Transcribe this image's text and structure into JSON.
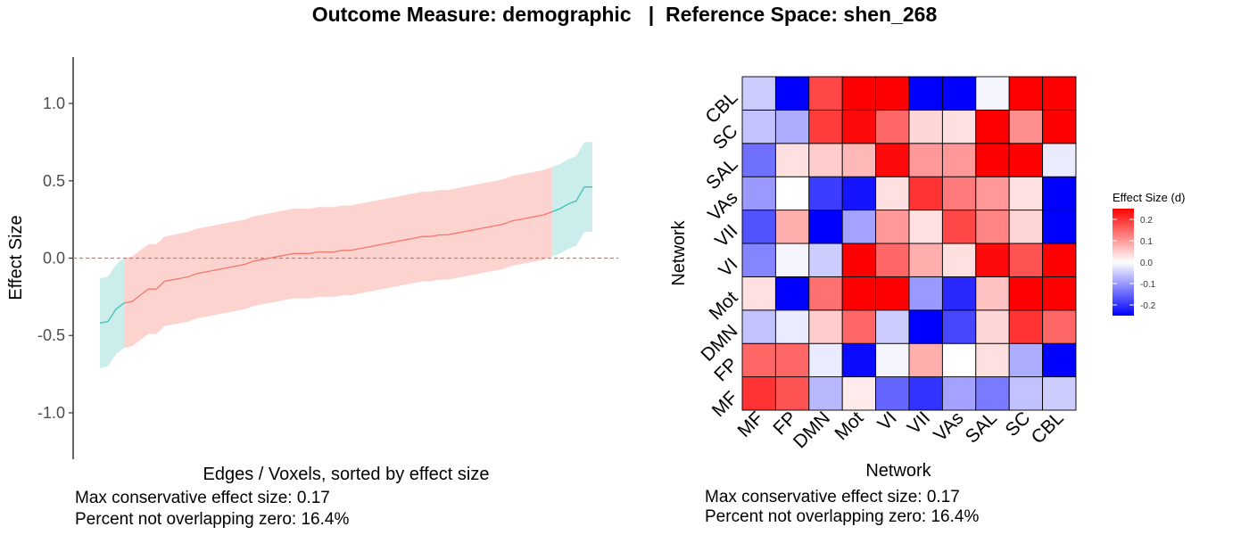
{
  "title": "Outcome Measure: demographic   |  Reference Space: shen_268",
  "colors": {
    "sig_fill": "#cbeeec",
    "sig_line": "#3fbfb5",
    "nonsig_fill": "#fdd3d0",
    "nonsig_line": "#f4786c",
    "zero_line": "#e8705f",
    "low": "#0000ff",
    "mid": "#ffffff",
    "high": "#ff0000"
  },
  "chart_data": [
    {
      "type": "area",
      "xlabel": "Edges / Voxels, sorted by effect size",
      "ylabel": "Effect Size",
      "ylim": [
        -1.3,
        1.3
      ],
      "yticks": [
        "-1.0",
        "-0.5",
        "0.0",
        "0.5",
        "1.0"
      ],
      "ytick_values": [
        -1.0,
        -0.5,
        0.0,
        0.5,
        1.0
      ],
      "reference_line": 0.0,
      "grid": false,
      "series": [
        {
          "values": [
            -0.42,
            -0.41,
            -0.33,
            -0.29,
            -0.28,
            -0.24,
            -0.2,
            -0.2,
            -0.15,
            -0.14,
            -0.13,
            -0.12,
            -0.1,
            -0.09,
            -0.08,
            -0.07,
            -0.06,
            -0.05,
            -0.04,
            -0.02,
            -0.01,
            0.0,
            0.01,
            0.02,
            0.03,
            0.03,
            0.03,
            0.04,
            0.04,
            0.04,
            0.05,
            0.05,
            0.06,
            0.07,
            0.08,
            0.09,
            0.1,
            0.11,
            0.12,
            0.13,
            0.14,
            0.14,
            0.15,
            0.15,
            0.16,
            0.17,
            0.18,
            0.19,
            0.2,
            0.21,
            0.22,
            0.24,
            0.25,
            0.26,
            0.27,
            0.28,
            0.3,
            0.32,
            0.35,
            0.37,
            0.46,
            0.46
          ]
        },
        {
          "lower": [
            -0.71,
            -0.7,
            -0.62,
            -0.58,
            -0.57,
            -0.53,
            -0.49,
            -0.49,
            -0.44,
            -0.43,
            -0.42,
            -0.41,
            -0.39,
            -0.38,
            -0.37,
            -0.36,
            -0.35,
            -0.34,
            -0.33,
            -0.31,
            -0.3,
            -0.29,
            -0.28,
            -0.27,
            -0.26,
            -0.26,
            -0.26,
            -0.25,
            -0.25,
            -0.25,
            -0.24,
            -0.24,
            -0.23,
            -0.22,
            -0.21,
            -0.2,
            -0.19,
            -0.18,
            -0.17,
            -0.16,
            -0.15,
            -0.15,
            -0.14,
            -0.14,
            -0.13,
            -0.12,
            -0.11,
            -0.1,
            -0.09,
            -0.08,
            -0.07,
            -0.05,
            -0.04,
            -0.03,
            -0.02,
            -0.01,
            0.01,
            0.03,
            0.06,
            0.08,
            0.17,
            0.17
          ]
        },
        {
          "upper": [
            -0.13,
            -0.12,
            -0.04,
            0.0,
            0.01,
            0.05,
            0.09,
            0.09,
            0.14,
            0.15,
            0.16,
            0.17,
            0.19,
            0.2,
            0.21,
            0.22,
            0.23,
            0.24,
            0.25,
            0.27,
            0.28,
            0.29,
            0.3,
            0.31,
            0.32,
            0.32,
            0.32,
            0.33,
            0.33,
            0.33,
            0.34,
            0.34,
            0.35,
            0.36,
            0.37,
            0.38,
            0.39,
            0.4,
            0.41,
            0.42,
            0.43,
            0.43,
            0.44,
            0.44,
            0.45,
            0.46,
            0.47,
            0.48,
            0.49,
            0.5,
            0.51,
            0.53,
            0.54,
            0.55,
            0.56,
            0.57,
            0.59,
            0.61,
            0.64,
            0.66,
            0.75,
            0.75
          ]
        }
      ],
      "notes": [
        "Max conservative effect size: 0.17",
        "Percent not overlapping zero: 16.4%"
      ]
    },
    {
      "type": "heatmap",
      "xlabel": "Network",
      "ylabel": "Network",
      "x_categories": [
        "MF",
        "FP",
        "DMN",
        "Mot",
        "VI",
        "VII",
        "VAs",
        "SAL",
        "SC",
        "CBL"
      ],
      "y_categories": [
        "MF",
        "FP",
        "DMN",
        "Mot",
        "VI",
        "VII",
        "VAs",
        "SAL",
        "SC",
        "CBL"
      ],
      "values": [
        [
          0.2,
          0.17,
          -0.07,
          0.02,
          -0.15,
          -0.2,
          -0.09,
          -0.13,
          -0.06,
          -0.05
        ],
        [
          0.15,
          0.15,
          -0.02,
          -0.24,
          -0.01,
          0.08,
          0.0,
          0.03,
          -0.08,
          -0.25
        ],
        [
          -0.06,
          -0.02,
          0.05,
          0.15,
          -0.05,
          -0.26,
          -0.18,
          0.04,
          0.2,
          0.15
        ],
        [
          0.03,
          -0.25,
          0.14,
          0.28,
          0.28,
          -0.1,
          -0.21,
          0.06,
          0.25,
          0.25
        ],
        [
          -0.12,
          -0.01,
          -0.05,
          0.28,
          0.15,
          0.08,
          0.03,
          0.24,
          0.17,
          0.28
        ],
        [
          -0.17,
          0.08,
          -0.25,
          -0.09,
          0.1,
          0.03,
          0.18,
          0.12,
          0.04,
          -0.25
        ],
        [
          -0.1,
          0.0,
          -0.19,
          -0.23,
          0.03,
          0.2,
          0.13,
          0.1,
          0.03,
          -0.25
        ],
        [
          -0.14,
          0.03,
          0.05,
          0.07,
          0.24,
          0.1,
          0.1,
          0.27,
          0.26,
          -0.02
        ],
        [
          -0.06,
          -0.08,
          0.19,
          0.24,
          0.15,
          0.04,
          0.03,
          0.28,
          0.11,
          0.28
        ],
        [
          -0.05,
          -0.25,
          0.18,
          0.28,
          0.28,
          -0.25,
          -0.25,
          -0.01,
          0.28,
          0.28
        ]
      ],
      "legend": {
        "title": "Effect Size (d)",
        "ticks": [
          "0.2",
          "0.1",
          "0.0",
          "-0.1",
          "-0.2"
        ],
        "tick_values": [
          0.2,
          0.1,
          0.0,
          -0.1,
          -0.2
        ],
        "range": [
          -0.25,
          0.25
        ]
      },
      "notes": [
        "Max conservative effect size: 0.17",
        "Percent not overlapping zero: 16.4%"
      ]
    }
  ]
}
